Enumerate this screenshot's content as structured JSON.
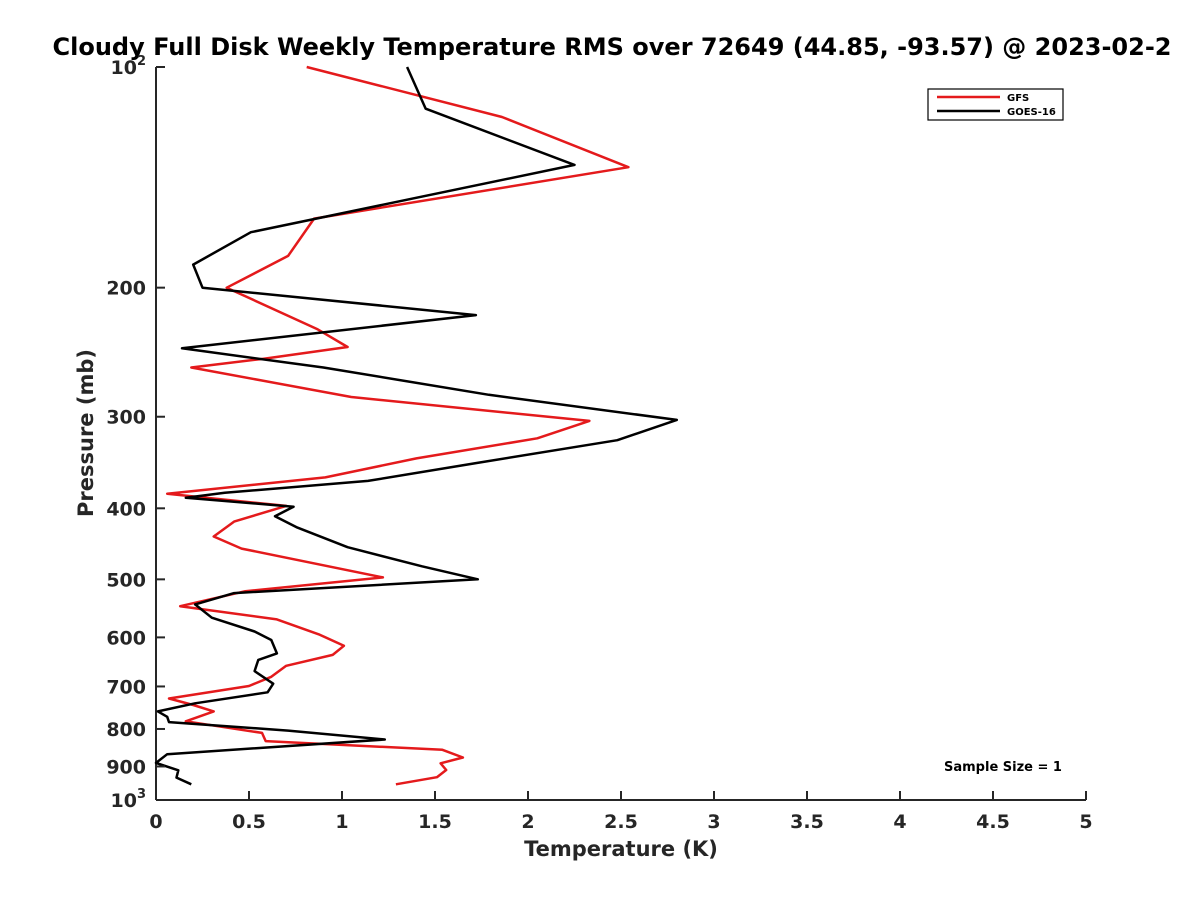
{
  "chart_data": {
    "type": "line",
    "title": "Cloudy Full Disk Weekly Temperature RMS over 72649 (44.85, -93.57) @ 2023-02-2",
    "xlabel": "Temperature (K)",
    "ylabel": "Pressure (mb)",
    "xlim": [
      0,
      5
    ],
    "ylim": [
      100,
      1000
    ],
    "yscale": "log",
    "y_reversed": true,
    "grid": false,
    "legend_position": "top-right",
    "xticks": [
      0,
      0.5,
      1,
      1.5,
      2,
      2.5,
      3,
      3.5,
      4,
      4.5,
      5
    ],
    "xtick_labels": [
      "0",
      "0.5",
      "1",
      "1.5",
      "2",
      "2.5",
      "3",
      "3.5",
      "4",
      "4.5",
      "5"
    ],
    "yticks": [
      {
        "value": 100,
        "base": "10",
        "exp": "2"
      },
      {
        "value": 200,
        "label": "200"
      },
      {
        "value": 300,
        "label": "300"
      },
      {
        "value": 400,
        "label": "400"
      },
      {
        "value": 500,
        "label": "500"
      },
      {
        "value": 600,
        "label": "600"
      },
      {
        "value": 700,
        "label": "700"
      },
      {
        "value": 800,
        "label": "800"
      },
      {
        "value": 900,
        "label": "900"
      },
      {
        "value": 1000,
        "base": "10",
        "exp": "3"
      }
    ],
    "annotation": "Sample Size = 1",
    "series": [
      {
        "name": "GFS",
        "color": "#e41a1c",
        "x": [
          0.81,
          1.86,
          2.54,
          0.85,
          0.71,
          0.38,
          0.87,
          1.03,
          0.58,
          0.19,
          1.05,
          2.33,
          2.05,
          1.4,
          0.91,
          0.06,
          0.7,
          0.42,
          0.31,
          0.46,
          1.22,
          0.48,
          0.13,
          0.65,
          0.88,
          1.01,
          0.95,
          0.7,
          0.62,
          0.5,
          0.07,
          0.2,
          0.31,
          0.16,
          0.57,
          0.59,
          1.54,
          1.65,
          1.53,
          1.56,
          1.51,
          1.29
        ],
        "y": [
          100,
          117,
          137,
          161,
          181,
          200,
          228,
          241,
          250,
          257,
          282,
          304,
          321,
          342,
          363,
          382,
          397,
          417,
          437,
          454,
          497,
          519,
          544,
          567,
          595,
          616,
          634,
          656,
          679,
          699,
          727,
          742,
          757,
          781,
          810,
          831,
          854,
          875,
          891,
          910,
          931,
          952
        ]
      },
      {
        "name": "GOES-16",
        "color": "#000000",
        "x": [
          1.35,
          1.45,
          2.25,
          0.51,
          0.2,
          0.25,
          1.72,
          0.14,
          0.9,
          1.79,
          2.8,
          2.48,
          1.72,
          1.14,
          0.37,
          0.16,
          0.74,
          0.64,
          0.76,
          1.03,
          1.43,
          1.73,
          0.42,
          0.21,
          0.3,
          0.53,
          0.62,
          0.65,
          0.55,
          0.53,
          0.63,
          0.6,
          0.21,
          0.01,
          0.06,
          0.07,
          0.71,
          1.23,
          0.06,
          0.0,
          0.12,
          0.11,
          0.19
        ],
        "y": [
          100,
          114,
          136,
          168,
          186,
          200,
          218,
          242,
          257,
          280,
          303,
          323,
          347,
          367,
          381,
          387,
          398,
          410,
          425,
          452,
          480,
          500,
          522,
          541,
          564,
          589,
          605,
          631,
          644,
          667,
          694,
          713,
          738,
          757,
          770,
          783,
          804,
          827,
          866,
          890,
          911,
          932,
          952
        ]
      }
    ]
  }
}
